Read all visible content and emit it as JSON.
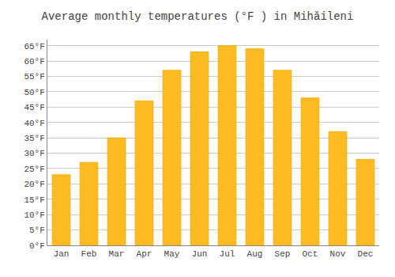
{
  "chart_data": {
    "type": "bar",
    "title": "Average monthly temperatures (°F ) in Mihăileni",
    "categories": [
      "Jan",
      "Feb",
      "Mar",
      "Apr",
      "May",
      "Jun",
      "Jul",
      "Aug",
      "Sep",
      "Oct",
      "Nov",
      "Dec"
    ],
    "values": [
      23,
      27,
      35,
      47,
      57,
      63,
      65,
      64,
      57,
      48,
      37,
      28
    ],
    "color": "#FFBB22",
    "ylim": [
      0,
      67
    ],
    "yticks": [
      {
        "value": 0,
        "label": "0°F"
      },
      {
        "value": 5,
        "label": "5°F"
      },
      {
        "value": 10,
        "label": "10°F"
      },
      {
        "value": 15,
        "label": "15°F"
      },
      {
        "value": 20,
        "label": "20°F"
      },
      {
        "value": 25,
        "label": "25°F"
      },
      {
        "value": 30,
        "label": "30°F"
      },
      {
        "value": 35,
        "label": "35°F"
      },
      {
        "value": 40,
        "label": "40°F"
      },
      {
        "value": 45,
        "label": "45°F"
      },
      {
        "value": 50,
        "label": "50°F"
      },
      {
        "value": 55,
        "label": "55°F"
      },
      {
        "value": 60,
        "label": "60°F"
      },
      {
        "value": 65,
        "label": "65°F"
      }
    ],
    "grid": true
  }
}
